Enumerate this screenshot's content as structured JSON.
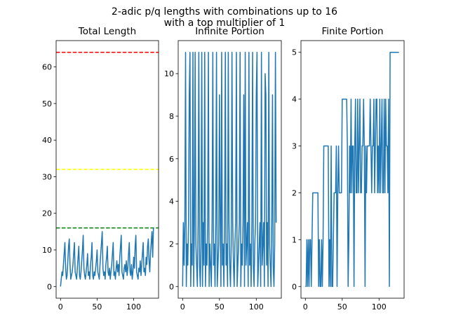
{
  "figure": {
    "title_line1": "2-adic p/q lengths with combinations up to 16",
    "title_line2": "with a top multiplier of 1"
  },
  "chart_data": [
    {
      "type": "line",
      "title": "Total Length",
      "xlabel": "",
      "ylabel": "",
      "xlim": [
        -6,
        134
      ],
      "ylim": [
        -3.2,
        67.2
      ],
      "xticks": [
        0,
        50,
        100
      ],
      "yticks": [
        0,
        10,
        20,
        30,
        40,
        50,
        60
      ],
      "grid": false,
      "hlines": [
        {
          "y": 64,
          "color": "#ff0000",
          "style": "dashed"
        },
        {
          "y": 32,
          "color": "#ffff00",
          "style": "dashed"
        },
        {
          "y": 16,
          "color": "#008000",
          "style": "dashed"
        }
      ],
      "series_color": "#1f77b4",
      "x": [
        0,
        1,
        2,
        3,
        4,
        5,
        6,
        7,
        8,
        9,
        10,
        11,
        12,
        13,
        14,
        15,
        16,
        17,
        18,
        19,
        20,
        21,
        22,
        23,
        24,
        25,
        26,
        27,
        28,
        29,
        30,
        31,
        32,
        33,
        34,
        35,
        36,
        37,
        38,
        39,
        40,
        41,
        42,
        43,
        44,
        45,
        46,
        47,
        48,
        49,
        50,
        51,
        52,
        53,
        54,
        55,
        56,
        57,
        58,
        59,
        60,
        61,
        62,
        63,
        64,
        65,
        66,
        67,
        68,
        69,
        70,
        71,
        72,
        73,
        74,
        75,
        76,
        77,
        78,
        79,
        80,
        81,
        82,
        83,
        84,
        85,
        86,
        87,
        88,
        89,
        90,
        91,
        92,
        93,
        94,
        95,
        96,
        97,
        98,
        99,
        100,
        101,
        102,
        103,
        104,
        105,
        106,
        107,
        108,
        109,
        110,
        111,
        112,
        113,
        114,
        115,
        116,
        117,
        118,
        119,
        120,
        121,
        122,
        123,
        124,
        125,
        126,
        127
      ],
      "y": [
        0,
        2,
        4,
        3,
        6,
        9,
        12,
        5,
        2,
        3,
        7,
        11,
        13,
        6,
        2,
        3,
        4,
        6,
        9,
        12,
        4,
        3,
        2,
        5,
        8,
        11,
        3,
        2,
        4,
        7,
        10,
        14,
        5,
        3,
        2,
        4,
        6,
        9,
        3,
        4,
        2,
        6,
        8,
        12,
        3,
        2,
        4,
        3,
        5,
        7,
        10,
        4,
        3,
        2,
        6,
        9,
        12,
        15,
        5,
        3,
        4,
        2,
        6,
        8,
        11,
        4,
        3,
        5,
        2,
        4,
        6,
        9,
        12,
        3,
        4,
        2,
        5,
        7,
        4,
        6,
        3,
        8,
        11,
        14,
        4,
        3,
        2,
        5,
        6,
        4,
        7,
        3,
        5,
        9,
        12,
        4,
        3,
        6,
        2,
        4,
        8,
        5,
        11,
        14,
        4,
        3,
        2,
        5,
        4,
        7,
        3,
        6,
        9,
        12,
        4,
        5,
        3,
        8,
        6,
        11,
        13,
        7,
        4,
        9,
        12,
        15,
        8,
        16
      ]
    },
    {
      "type": "line",
      "title": "Infinite Portion",
      "xlabel": "",
      "ylabel": "",
      "xlim": [
        -6,
        134
      ],
      "ylim": [
        -0.55,
        11.55
      ],
      "xticks": [
        0,
        50,
        100
      ],
      "yticks": [
        0,
        2,
        4,
        6,
        8,
        10
      ],
      "grid": false,
      "series_color": "#1f77b4",
      "x": [
        0,
        1,
        2,
        3,
        4,
        5,
        6,
        7,
        8,
        9,
        10,
        11,
        12,
        13,
        14,
        15,
        16,
        17,
        18,
        19,
        20,
        21,
        22,
        23,
        24,
        25,
        26,
        27,
        28,
        29,
        30,
        31,
        32,
        33,
        34,
        35,
        36,
        37,
        38,
        39,
        40,
        41,
        42,
        43,
        44,
        45,
        46,
        47,
        48,
        49,
        50,
        51,
        52,
        53,
        54,
        55,
        56,
        57,
        58,
        59,
        60,
        61,
        62,
        63,
        64,
        65,
        66,
        67,
        68,
        69,
        70,
        71,
        72,
        73,
        74,
        75,
        76,
        77,
        78,
        79,
        80,
        81,
        82,
        83,
        84,
        85,
        86,
        87,
        88,
        89,
        90,
        91,
        92,
        93,
        94,
        95,
        96,
        97,
        98,
        99,
        100,
        101,
        102,
        103,
        104,
        105,
        106,
        107,
        108,
        109,
        110,
        111,
        112,
        113,
        114,
        115,
        116,
        117,
        118,
        119,
        120,
        121,
        122,
        123,
        124,
        125,
        126,
        127
      ],
      "y": [
        0,
        3,
        1,
        3,
        11,
        0,
        2,
        1,
        3,
        9,
        11,
        0,
        2,
        1,
        11,
        0,
        3,
        11,
        2,
        1,
        0,
        3,
        11,
        1,
        0,
        2,
        11,
        0,
        3,
        1,
        11,
        0,
        2,
        1,
        3,
        11,
        0,
        2,
        1,
        0,
        3,
        11,
        1,
        2,
        0,
        3,
        11,
        0,
        1,
        2,
        9,
        3,
        0,
        11,
        1,
        2,
        0,
        3,
        11,
        1,
        2,
        0,
        11,
        3,
        1,
        0,
        2,
        11,
        3,
        1,
        0,
        2,
        3,
        11,
        0,
        1,
        2,
        3,
        11,
        0,
        2,
        1,
        3,
        9,
        0,
        11,
        1,
        2,
        3,
        0,
        11,
        1,
        2,
        0,
        3,
        11,
        1,
        0,
        2,
        3,
        9,
        11,
        0,
        1,
        2,
        3,
        0,
        11,
        1,
        2,
        3,
        0,
        10,
        9,
        1,
        3,
        0,
        11,
        2,
        1,
        0,
        3,
        9,
        1,
        0,
        2,
        11,
        3
      ]
    },
    {
      "type": "line",
      "title": "Finite Portion",
      "xlabel": "",
      "ylabel": "",
      "xlim": [
        -6,
        134
      ],
      "ylim": [
        -0.25,
        5.25
      ],
      "xticks": [
        0,
        50,
        100
      ],
      "yticks": [
        0,
        1,
        2,
        3,
        4,
        5
      ],
      "grid": false,
      "series_color": "#1f77b4",
      "x": [
        0,
        1,
        2,
        3,
        4,
        5,
        6,
        7,
        8,
        9,
        10,
        11,
        12,
        13,
        14,
        15,
        16,
        17,
        18,
        19,
        20,
        21,
        22,
        23,
        24,
        25,
        26,
        27,
        28,
        29,
        30,
        31,
        32,
        33,
        34,
        35,
        36,
        37,
        38,
        39,
        40,
        41,
        42,
        43,
        44,
        45,
        46,
        47,
        48,
        49,
        50,
        51,
        52,
        53,
        54,
        55,
        56,
        57,
        58,
        59,
        60,
        61,
        62,
        63,
        64,
        65,
        66,
        67,
        68,
        69,
        70,
        71,
        72,
        73,
        74,
        75,
        76,
        77,
        78,
        79,
        80,
        81,
        82,
        83,
        84,
        85,
        86,
        87,
        88,
        89,
        90,
        91,
        92,
        93,
        94,
        95,
        96,
        97,
        98,
        99,
        100,
        101,
        102,
        103,
        104,
        105,
        106,
        107,
        108,
        109,
        110,
        111,
        112,
        113,
        114,
        115,
        116,
        117,
        118,
        119,
        120,
        121,
        122,
        123,
        124,
        125,
        126,
        127
      ],
      "y": [
        0,
        0,
        1,
        0,
        1,
        0,
        1,
        1,
        0,
        1,
        2,
        2,
        2,
        2,
        2,
        2,
        2,
        2,
        0,
        1,
        0,
        0,
        1,
        0,
        1,
        3,
        3,
        3,
        3,
        3,
        3,
        3,
        0,
        1,
        0,
        3,
        0,
        0,
        1,
        2,
        2,
        2,
        3,
        0,
        2,
        3,
        2,
        2,
        2,
        2,
        4,
        4,
        4,
        4,
        4,
        4,
        4,
        3,
        0,
        1,
        3,
        2,
        4,
        2,
        3,
        3,
        0,
        3,
        4,
        2,
        2,
        4,
        2,
        3,
        4,
        2,
        2,
        3,
        3,
        4,
        3,
        0,
        3,
        2,
        3,
        3,
        3,
        3,
        4,
        3,
        2,
        3,
        3,
        4,
        2,
        3,
        4,
        4,
        2,
        3,
        2,
        4,
        2,
        3,
        4,
        2,
        2,
        4,
        2,
        4,
        3,
        3,
        2,
        4,
        0,
        5,
        5,
        5,
        5,
        5,
        5,
        5,
        5,
        5,
        5,
        5,
        5,
        5
      ]
    }
  ]
}
